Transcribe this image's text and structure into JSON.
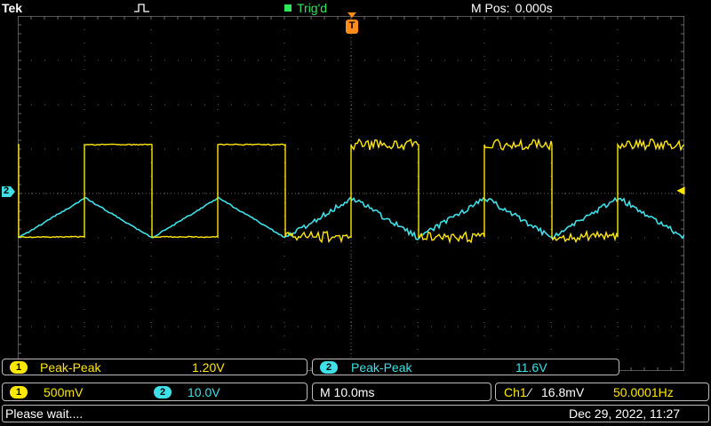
{
  "header": {
    "brand": "Tek",
    "trigger_status": "Trig'd",
    "mpos_label": "M Pos:",
    "mpos_value": "0.000s"
  },
  "markers": {
    "trigger_position": "T",
    "ch2_level": "2",
    "trigger_level": "◀"
  },
  "measurements": [
    {
      "channel": "1",
      "type": "Peak-Peak",
      "value": "1.20V",
      "color": "#ffe800"
    },
    {
      "channel": "2",
      "type": "Peak-Peak",
      "value": "11.6V",
      "color": "#3fe0e8"
    }
  ],
  "settings": {
    "ch1_scale": "500mV",
    "ch2_scale": "10.0V",
    "timebase": "M 10.0ms",
    "trigger_source": "Ch1",
    "trigger_slope": "⁄",
    "trigger_level": "16.8mV",
    "frequency": "50.0001Hz"
  },
  "status": {
    "message": "Please wait....",
    "datetime": "Dec 29, 2022, 11:27"
  },
  "colors": {
    "ch1": "#ffe800",
    "ch2": "#3fe0e8",
    "grid": "#6a6a6a",
    "trigger_marker": "#ff8c1a",
    "status_green": "#2ee85a"
  },
  "icons": {
    "trigger_mode": "pulse-icon"
  }
}
